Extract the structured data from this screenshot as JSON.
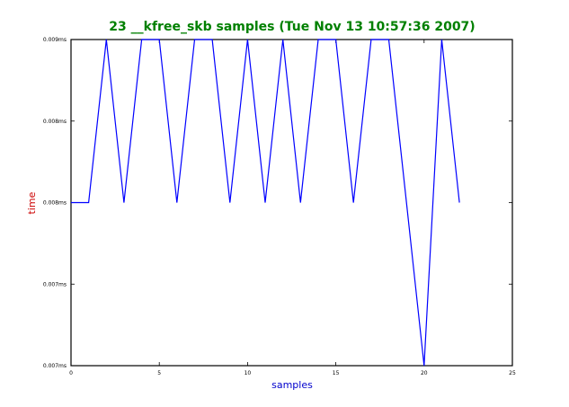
{
  "chart_data": {
    "type": "line",
    "title": "23 __kfree_skb samples (Tue Nov 13 10:57:36 2007)",
    "xlabel": "samples",
    "ylabel": "time",
    "xlim": [
      0,
      25
    ],
    "ylim": [
      0,
      4
    ],
    "x_ticks": [
      0,
      5,
      10,
      15,
      20,
      25
    ],
    "x_tick_labels": [
      "0",
      "5",
      "10",
      "15",
      "20",
      "25"
    ],
    "y_ticks": [
      0,
      1,
      2,
      3,
      4
    ],
    "y_tick_labels": [
      "0.007ms",
      "0.007ms",
      "0.008ms",
      "0.008ms",
      "0.009ms"
    ],
    "grid": false,
    "series": [
      {
        "x": [
          0,
          1,
          2,
          3,
          4,
          5,
          6,
          7,
          8,
          9,
          10,
          11,
          12,
          13,
          14,
          15,
          16,
          17,
          18,
          19,
          20,
          21,
          22
        ],
        "values": [
          2,
          2,
          4,
          2,
          4,
          4,
          2,
          4,
          4,
          2,
          4,
          2,
          4,
          2,
          4,
          4,
          2,
          4,
          4,
          2,
          0,
          4,
          2
        ]
      }
    ],
    "colors": {
      "line": "#0000ff",
      "title": "#008000",
      "xlabel": "#0000cc",
      "ylabel": "#cc0000",
      "axes": "#000000"
    }
  }
}
